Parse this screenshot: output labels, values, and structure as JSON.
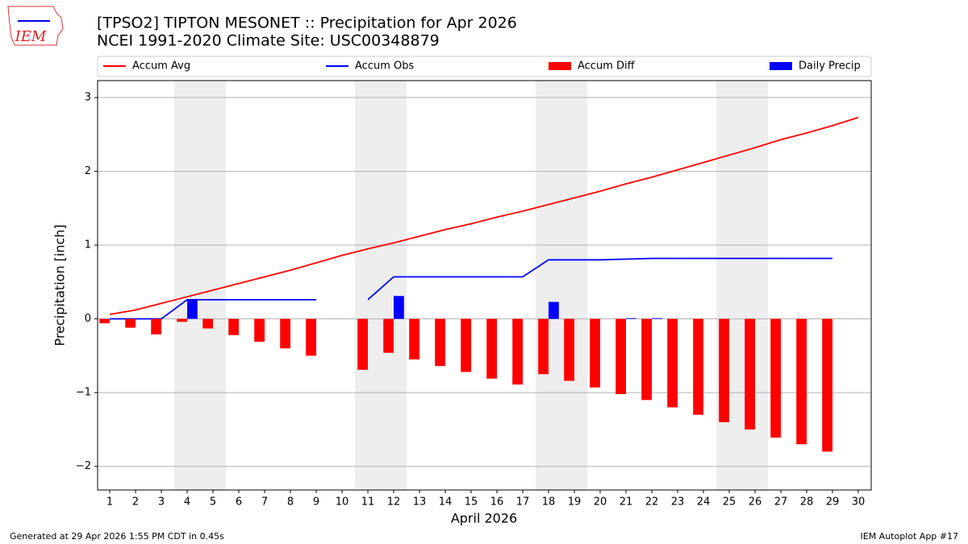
{
  "logo_text": "IEM",
  "footer_left": "Generated at 29 Apr 2026 1:55 PM CDT in 0.45s",
  "footer_right": "IEM Autoplot App #17",
  "chart_data": {
    "type": "combo",
    "title": "[TPSO2] TIPTON MESONET :: Precipitation for Apr 2026",
    "subtitle": "NCEI 1991-2020 Climate Site: USC00348879",
    "x_label": "April 2026",
    "y_label": "Precipitation [inch]",
    "x": [
      1,
      2,
      3,
      4,
      5,
      6,
      7,
      8,
      9,
      10,
      11,
      12,
      13,
      14,
      15,
      16,
      17,
      18,
      19,
      20,
      21,
      22,
      23,
      24,
      25,
      26,
      27,
      28,
      29,
      30
    ],
    "xlim": [
      0.53,
      30.5
    ],
    "xticks": [
      1,
      2,
      3,
      4,
      5,
      6,
      7,
      8,
      9,
      10,
      11,
      12,
      13,
      14,
      15,
      16,
      17,
      18,
      19,
      20,
      21,
      22,
      23,
      24,
      25,
      26,
      27,
      28,
      29,
      30
    ],
    "ylim": [
      -2.32,
      3.23
    ],
    "yticks": [
      {
        "value": -2,
        "label": "−2"
      },
      {
        "value": -1,
        "label": "−1"
      },
      0,
      1,
      2,
      3
    ],
    "grid": "y",
    "legend": "top",
    "shaded_spans": [
      [
        3.5,
        5.5
      ],
      [
        10.5,
        12.5
      ],
      [
        17.5,
        19.5
      ],
      [
        24.5,
        26.5
      ]
    ],
    "shade_color": "#eeeeee",
    "series": [
      {
        "name": "Accum Avg",
        "kind": "line",
        "color": "#ff0000",
        "values": [
          0.06,
          0.12,
          0.21,
          0.3,
          0.39,
          0.48,
          0.57,
          0.66,
          0.76,
          0.86,
          0.95,
          1.03,
          1.12,
          1.21,
          1.29,
          1.38,
          1.46,
          1.55,
          1.64,
          1.73,
          1.83,
          1.92,
          2.02,
          2.12,
          2.22,
          2.32,
          2.43,
          2.52,
          2.62,
          2.73
        ]
      },
      {
        "name": "Accum Obs",
        "kind": "line",
        "color": "#0000ff",
        "values": [
          0,
          0,
          0,
          0.26,
          0.26,
          0.26,
          0.26,
          0.26,
          0.26,
          null,
          0.26,
          0.57,
          0.57,
          0.57,
          0.57,
          0.57,
          0.57,
          0.8,
          0.8,
          0.8,
          0.81,
          0.82,
          0.82,
          0.82,
          0.82,
          0.82,
          0.82,
          0.82,
          0.82,
          null
        ]
      },
      {
        "name": "Accum Diff",
        "kind": "bar",
        "color": "#ff0000",
        "values": [
          -0.06,
          -0.12,
          -0.21,
          -0.04,
          -0.13,
          -0.22,
          -0.31,
          -0.4,
          -0.5,
          null,
          -0.69,
          -0.46,
          -0.55,
          -0.64,
          -0.72,
          -0.81,
          -0.89,
          -0.75,
          -0.84,
          -0.93,
          -1.02,
          -1.1,
          -1.2,
          -1.3,
          -1.4,
          -1.5,
          -1.61,
          -1.7,
          -1.8,
          null
        ]
      },
      {
        "name": "Daily Precip",
        "kind": "bar",
        "color": "#0000ff",
        "values": [
          0,
          0,
          0,
          0.26,
          0,
          0,
          0,
          0,
          0,
          null,
          0,
          0.31,
          0,
          0,
          0,
          0,
          0,
          0.23,
          0,
          0,
          0.01,
          0.01,
          0,
          0,
          0,
          0,
          0,
          0,
          0,
          null
        ]
      }
    ]
  }
}
